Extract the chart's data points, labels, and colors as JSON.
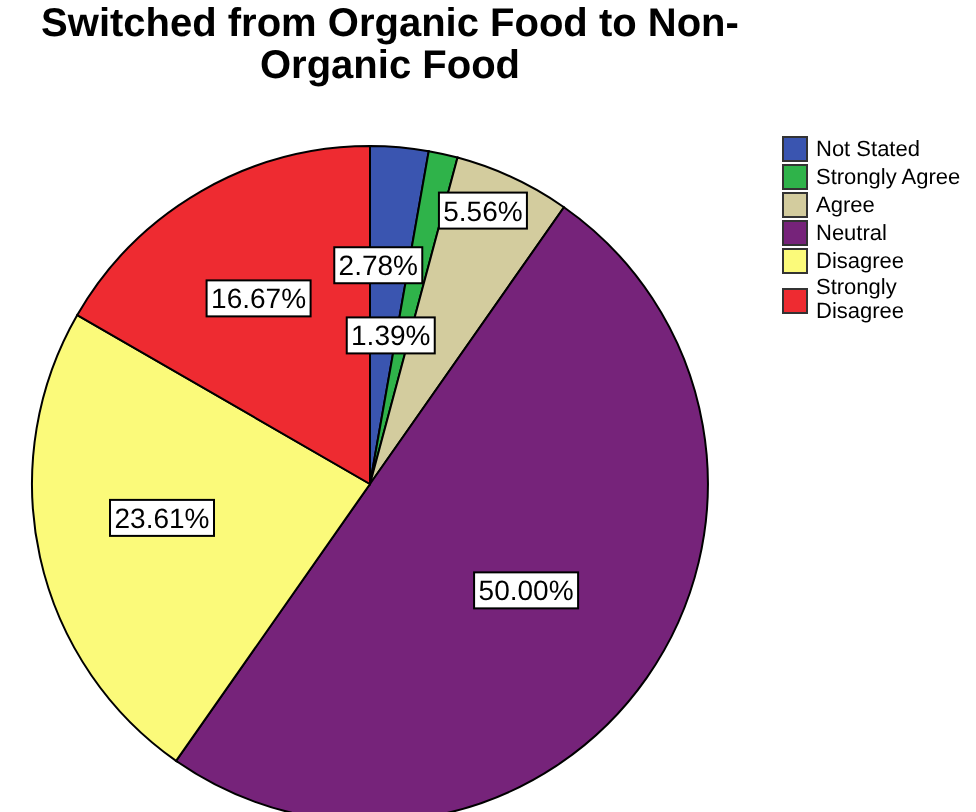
{
  "chart_data": {
    "type": "pie",
    "title": "Switched from Organic Food to Non-Organic Food",
    "categories": [
      "Not Stated",
      "Strongly Agree",
      "Agree",
      "Neutral",
      "Disagree",
      "Strongly Disagree"
    ],
    "values": [
      2.78,
      1.39,
      5.56,
      50.0,
      23.61,
      16.67
    ],
    "value_labels": [
      "2.78%",
      "1.39%",
      "5.56%",
      "50.00%",
      "23.61%",
      "16.67%"
    ],
    "colors": [
      "#3a55b0",
      "#2fb34a",
      "#d3cc9e",
      "#76237a",
      "#fbfa7a",
      "#ee2b31"
    ],
    "legend": "top right"
  }
}
